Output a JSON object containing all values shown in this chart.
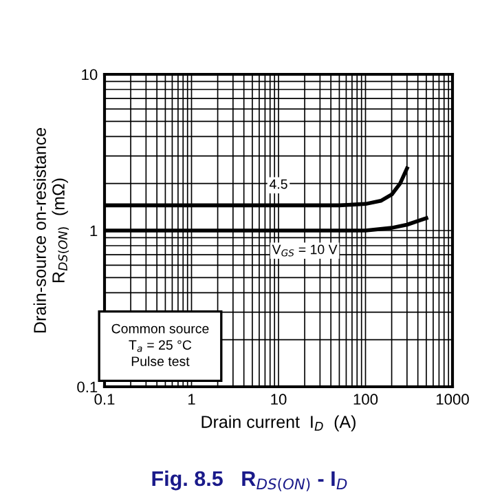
{
  "chart_data": {
    "type": "line",
    "title": "Fig. 8.5   R$_{DS(ON)}$ - I$_{D}$",
    "xlabel": "Drain current  I$_{D}$  (A)",
    "ylabel": "Drain-source on-resistance\nR$_{DS(ON)}$  (mΩ)",
    "series": [
      {
        "name": "4.5",
        "color": "#000000",
        "x": [
          0.1,
          50,
          100,
          150,
          200,
          250,
          300
        ],
        "values": [
          1.45,
          1.45,
          1.48,
          1.55,
          1.7,
          2.0,
          2.5
        ]
      },
      {
        "name": "V$_{GS}$ = 10 V",
        "color": "#000000",
        "x": [
          0.1,
          100,
          200,
          300,
          400,
          500
        ],
        "values": [
          1.0,
          1.0,
          1.04,
          1.09,
          1.15,
          1.2
        ]
      }
    ],
    "annotations": [
      "Common source\nT$_{a}$ = 25 °C\nPulse test"
    ],
    "log": "xy",
    "xlim": [
      0.1,
      1000
    ],
    "ylim": [
      0.1,
      10
    ],
    "xticks": [
      0.1,
      1,
      10,
      100,
      1000
    ],
    "yticks": [
      0.1,
      1,
      10
    ],
    "grid": true,
    "legend": false,
    "marker": "none",
    "line_style": "solid"
  }
}
